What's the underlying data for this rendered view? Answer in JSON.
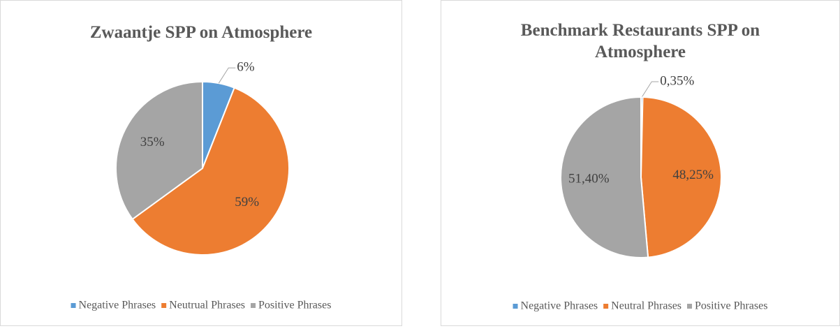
{
  "chart_data": [
    {
      "type": "pie",
      "title": "Zwaantje SPP on Atmosphere",
      "categories": [
        "Negative Phrases",
        "Neutrual Phrases",
        "Positive Phrases"
      ],
      "values": [
        6,
        59,
        35
      ],
      "value_labels": [
        "6%",
        "59%",
        "35%"
      ],
      "colors": [
        "#5b9bd5",
        "#ed7d31",
        "#a5a5a5"
      ],
      "legend": "bottom"
    },
    {
      "type": "pie",
      "title": "Benchmark Restaurants SPP on Atmosphere",
      "categories": [
        "Negative Phrases",
        "Neutral Phrases",
        "Positive Phrases"
      ],
      "values": [
        0.35,
        48.25,
        51.4
      ],
      "value_labels": [
        "0,35%",
        "48,25%",
        "51,40%"
      ],
      "colors": [
        "#5b9bd5",
        "#ed7d31",
        "#a5a5a5"
      ],
      "legend": "bottom"
    }
  ]
}
